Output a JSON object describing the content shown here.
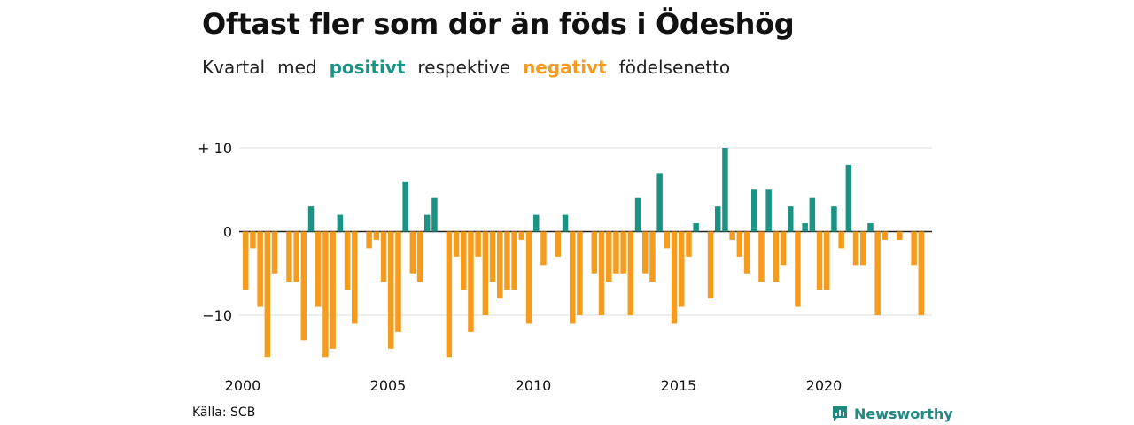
{
  "title": "Oftast fler som dör än föds i Ödeshög",
  "subtitle": {
    "part1": "Kvartal",
    "part2": "med",
    "positive_word": "positivt",
    "part3": "respektive",
    "negative_word": "negativt",
    "part4": "födelsenetto"
  },
  "source": "Källa: SCB",
  "brand": "Newsworthy",
  "colors": {
    "positive": "#1a9385",
    "negative": "#f59c1f",
    "grid": "#dddddd",
    "zero": "#222222"
  },
  "chart_data": {
    "type": "bar",
    "ylim": [
      -16,
      10
    ],
    "yticks": [
      10,
      0,
      -10
    ],
    "ytick_labels": [
      "+ 10",
      "0",
      "−10"
    ],
    "xticks": [
      2000,
      2005,
      2010,
      2015,
      2020
    ],
    "ytick_labels_note": "",
    "x_start": 2000.0,
    "quarter_step": 0.25,
    "values": [
      -7,
      -2,
      -9,
      -15,
      -5,
      0,
      -6,
      -6,
      -13,
      3,
      -9,
      -15,
      -14,
      2,
      -7,
      -11,
      0,
      -2,
      -1,
      -6,
      -14,
      -12,
      6,
      -5,
      -6,
      2,
      4,
      0,
      -15,
      -3,
      -7,
      -12,
      -3,
      -10,
      -6,
      -8,
      -7,
      -7,
      -1,
      -11,
      2,
      -4,
      0,
      -3,
      2,
      -11,
      -10,
      0,
      -5,
      -10,
      -6,
      -5,
      -5,
      -10,
      4,
      -5,
      -6,
      7,
      -2,
      -11,
      -9,
      -3,
      1,
      0,
      -8,
      3,
      10,
      -1,
      -3,
      -5,
      5,
      -6,
      5,
      -6,
      -4,
      3,
      -9,
      1,
      4,
      -7,
      -7,
      3,
      -2,
      8,
      -4,
      -4,
      1,
      -10,
      -1,
      0,
      -1,
      0,
      -4,
      -10
    ]
  }
}
